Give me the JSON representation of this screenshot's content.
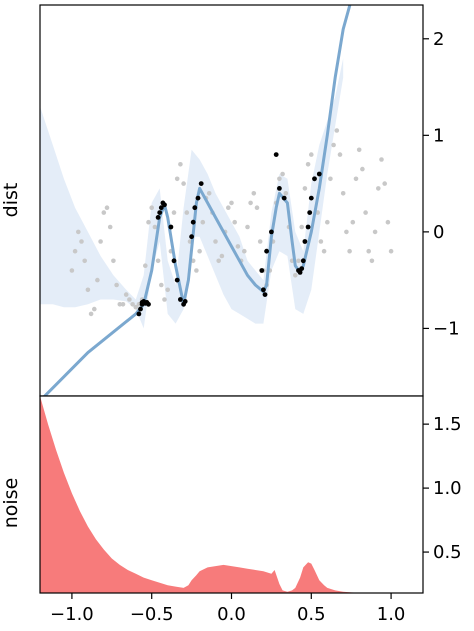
{
  "chart_data": [
    {
      "type": "line",
      "ylabel": "dist",
      "xlim": [
        -1.2,
        1.2
      ],
      "ylim": [
        -1.7,
        2.35
      ],
      "yticks": [
        2,
        1,
        0,
        -1
      ],
      "ytick_labels": [
        "2",
        "1",
        "0",
        "−1"
      ],
      "colors": {
        "band": "#dbe7f5",
        "line": "#7ba8cf",
        "samples": "#000000",
        "background_points": "#c8c8c8"
      },
      "band": {
        "x": [
          -1.2,
          -1.12,
          -1.05,
          -0.98,
          -0.9,
          -0.82,
          -0.74,
          -0.66,
          -0.6,
          -0.55,
          -0.5,
          -0.45,
          -0.4,
          -0.35,
          -0.3,
          -0.25,
          -0.2,
          -0.15,
          -0.1,
          -0.05,
          0.0,
          0.05,
          0.1,
          0.15,
          0.2,
          0.25,
          0.3,
          0.35,
          0.4,
          0.45,
          0.5,
          0.55,
          0.6,
          0.65,
          0.7
        ],
        "upper": [
          1.3,
          0.9,
          0.55,
          0.25,
          0.0,
          -0.25,
          -0.45,
          -0.6,
          -0.7,
          -0.45,
          0.3,
          0.45,
          -0.3,
          -0.55,
          0.25,
          0.85,
          0.75,
          0.6,
          0.4,
          0.25,
          0.1,
          -0.05,
          -0.3,
          -0.4,
          -0.5,
          0.2,
          0.6,
          0.55,
          0.0,
          -0.2,
          0.5,
          0.9,
          1.15,
          1.4,
          1.8
        ],
        "lower": [
          -0.75,
          -0.75,
          -0.78,
          -0.78,
          -0.75,
          -0.7,
          -0.7,
          -0.72,
          -0.8,
          -1.0,
          -0.4,
          -0.1,
          -0.85,
          -0.95,
          -0.8,
          -0.05,
          -0.05,
          -0.25,
          -0.45,
          -0.65,
          -0.8,
          -0.85,
          -0.9,
          -0.95,
          -0.95,
          -0.4,
          -0.2,
          -0.25,
          -0.8,
          -0.85,
          -0.6,
          0.0,
          0.6,
          1.1,
          1.6
        ]
      },
      "series": [
        {
          "role": "background",
          "x": [
            -1.0,
            -0.98,
            -0.96,
            -0.94,
            -0.92,
            -0.9,
            -0.88,
            -0.86,
            -0.84,
            -0.82,
            -0.8,
            -0.78,
            -0.76,
            -0.74,
            -0.72,
            -0.7,
            -0.68,
            -0.66,
            -0.64,
            -0.62,
            -0.6,
            -0.58,
            -0.56,
            -0.54,
            -0.52,
            -0.5,
            -0.48,
            -0.46,
            -0.44,
            -0.42,
            -0.4,
            -0.38,
            -0.36,
            -0.34,
            -0.32,
            -0.3,
            -0.28,
            -0.26,
            -0.24,
            -0.22,
            -0.2,
            -0.18,
            -0.16,
            -0.14,
            -0.12,
            -0.1,
            -0.08,
            -0.06,
            -0.04,
            -0.02,
            0.0,
            0.02,
            0.04,
            0.06,
            0.08,
            0.1,
            0.12,
            0.14,
            0.16,
            0.18,
            0.2,
            0.22,
            0.24,
            0.26,
            0.28,
            0.3,
            0.32,
            0.34,
            0.36,
            0.38,
            0.4,
            0.42,
            0.44,
            0.46,
            0.48,
            0.5,
            0.52,
            0.54,
            0.56,
            0.58,
            0.6,
            0.62,
            0.64,
            0.66,
            0.68,
            0.7,
            0.72,
            0.74,
            0.76,
            0.78,
            0.8,
            0.82,
            0.84,
            0.86,
            0.88,
            0.9,
            0.92,
            0.94,
            0.96,
            0.98,
            1.0
          ],
          "y": [
            -0.4,
            -0.2,
            0.0,
            -0.1,
            -0.3,
            -0.6,
            -0.85,
            -0.8,
            -0.5,
            -0.1,
            0.2,
            0.25,
            0.05,
            -0.3,
            -0.55,
            -0.75,
            -0.75,
            -0.65,
            -0.7,
            -0.75,
            -0.78,
            -0.75,
            -0.7,
            -0.35,
            0.1,
            0.25,
            0.05,
            -0.3,
            -0.55,
            -0.7,
            -0.6,
            -0.2,
            0.2,
            0.55,
            0.7,
            0.5,
            0.2,
            -0.1,
            -0.3,
            -0.4,
            -0.2,
            0.1,
            0.35,
            0.4,
            0.2,
            -0.1,
            -0.3,
            -0.25,
            0.0,
            0.25,
            0.3,
            0.1,
            -0.15,
            -0.3,
            -0.2,
            0.05,
            0.3,
            0.4,
            0.25,
            -0.1,
            -0.4,
            -0.55,
            -0.4,
            -0.1,
            0.3,
            0.55,
            0.6,
            0.4,
            0.05,
            -0.3,
            -0.45,
            -0.3,
            0.05,
            0.45,
            0.7,
            0.8,
            0.55,
            0.2,
            -0.1,
            -0.2,
            0.1,
            0.55,
            0.9,
            1.05,
            0.8,
            0.4,
            0.0,
            -0.2,
            0.1,
            0.55,
            0.85,
            0.65,
            0.2,
            -0.2,
            -0.3,
            0.0,
            0.45,
            0.75,
            0.5,
            0.1,
            -0.2
          ]
        },
        {
          "role": "samples",
          "x": [
            -0.58,
            -0.57,
            -0.56,
            -0.56,
            -0.55,
            -0.54,
            -0.53,
            -0.52,
            -0.46,
            -0.45,
            -0.44,
            -0.43,
            -0.42,
            -0.38,
            -0.36,
            -0.34,
            -0.32,
            -0.3,
            -0.29,
            -0.25,
            -0.24,
            -0.23,
            -0.21,
            -0.19,
            0.19,
            0.2,
            0.21,
            0.22,
            0.25,
            0.28,
            0.3,
            0.33,
            0.42,
            0.43,
            0.44,
            0.45,
            0.46,
            0.48,
            0.49,
            0.5,
            0.52,
            0.55
          ],
          "y": [
            -0.85,
            -0.8,
            -0.75,
            -0.73,
            -0.72,
            -0.74,
            -0.73,
            -0.75,
            0.15,
            0.2,
            0.25,
            0.3,
            0.28,
            0.05,
            -0.3,
            -0.5,
            -0.7,
            -0.75,
            -0.72,
            -0.05,
            0.1,
            0.25,
            0.35,
            0.5,
            -0.4,
            -0.6,
            -0.65,
            -0.2,
            0.0,
            0.8,
            0.45,
            0.35,
            -0.4,
            -0.42,
            -0.38,
            -0.3,
            -0.1,
            0.05,
            0.2,
            0.35,
            0.55,
            0.6
          ]
        },
        {
          "role": "mean",
          "x": [
            -1.2,
            -0.9,
            -0.6,
            -0.55,
            -0.5,
            -0.45,
            -0.42,
            -0.4,
            -0.35,
            -0.3,
            -0.27,
            -0.22,
            -0.2,
            -0.15,
            -0.1,
            -0.05,
            0.0,
            0.05,
            0.1,
            0.15,
            0.2,
            0.22,
            0.25,
            0.28,
            0.3,
            0.35,
            0.38,
            0.4,
            0.43,
            0.45,
            0.5,
            0.55,
            0.6,
            0.65,
            0.7,
            0.75
          ],
          "y": [
            -1.75,
            -1.25,
            -0.85,
            -0.75,
            -0.4,
            0.15,
            0.28,
            0.15,
            -0.35,
            -0.75,
            -0.5,
            0.3,
            0.45,
            0.3,
            0.15,
            0.0,
            -0.15,
            -0.3,
            -0.45,
            -0.55,
            -0.62,
            -0.55,
            -0.05,
            0.25,
            0.4,
            0.3,
            -0.1,
            -0.35,
            -0.42,
            -0.35,
            0.0,
            0.45,
            1.0,
            1.6,
            2.1,
            2.4
          ]
        }
      ]
    },
    {
      "type": "area",
      "xlabel": "",
      "ylabel": "noise",
      "xlim": [
        -1.2,
        1.2
      ],
      "ylim": [
        0.18,
        1.72
      ],
      "xticks": [
        -1.0,
        -0.5,
        0.0,
        0.5,
        1.0
      ],
      "xtick_labels": [
        "−1.0",
        "−0.5",
        "0.0",
        "0.5",
        "1.0"
      ],
      "yticks": [
        1.5,
        1.0,
        0.5
      ],
      "ytick_labels": [
        "1.5",
        "1.0",
        "0.5"
      ],
      "colors": {
        "fill": "#f77b7b"
      },
      "series": [
        {
          "x": [
            -1.2,
            -1.15,
            -1.1,
            -1.05,
            -1.0,
            -0.95,
            -0.9,
            -0.85,
            -0.8,
            -0.75,
            -0.7,
            -0.65,
            -0.6,
            -0.55,
            -0.5,
            -0.45,
            -0.4,
            -0.35,
            -0.3,
            -0.27,
            -0.25,
            -0.22,
            -0.2,
            -0.15,
            -0.1,
            -0.05,
            0.0,
            0.05,
            0.1,
            0.15,
            0.2,
            0.25,
            0.27,
            0.3,
            0.32,
            0.35,
            0.38,
            0.4,
            0.43,
            0.45,
            0.48,
            0.5,
            0.52,
            0.55,
            0.58,
            0.6,
            0.65,
            0.7,
            0.75,
            0.8,
            0.9,
            1.0,
            1.2
          ],
          "y": [
            1.72,
            1.5,
            1.3,
            1.12,
            0.96,
            0.82,
            0.7,
            0.6,
            0.52,
            0.45,
            0.4,
            0.36,
            0.33,
            0.3,
            0.28,
            0.26,
            0.24,
            0.23,
            0.22,
            0.24,
            0.28,
            0.32,
            0.35,
            0.38,
            0.39,
            0.4,
            0.39,
            0.38,
            0.37,
            0.36,
            0.35,
            0.33,
            0.36,
            0.25,
            0.2,
            0.19,
            0.2,
            0.22,
            0.3,
            0.38,
            0.42,
            0.41,
            0.36,
            0.28,
            0.24,
            0.22,
            0.2,
            0.19,
            0.185,
            0.182,
            0.18,
            0.18,
            0.18
          ]
        }
      ]
    }
  ]
}
